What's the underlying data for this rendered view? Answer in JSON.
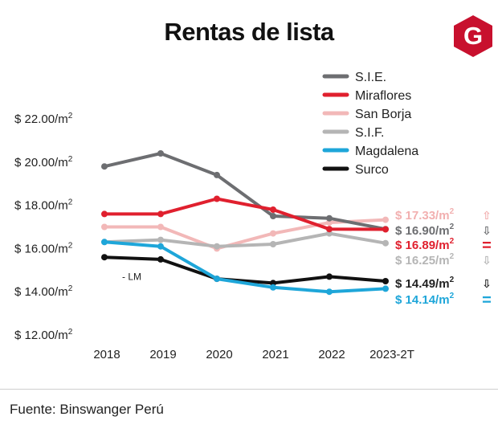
{
  "title": "Rentas de lista",
  "logo": {
    "icon": "gestion-logo-icon",
    "letter": "G",
    "color": "#c8102e"
  },
  "source": "Fuente: Binswanger Perú",
  "chart_data": {
    "type": "line",
    "title": "Rentas de lista",
    "xlabel": "",
    "ylabel": "",
    "categories": [
      "2018",
      "2019",
      "2020",
      "2021",
      "2022",
      "2023-2T"
    ],
    "y_ticks": [
      {
        "value": 12,
        "label": "$ 12.00/m",
        "sup": "2"
      },
      {
        "value": 14,
        "label": "$ 14.00/m",
        "sup": "2"
      },
      {
        "value": 16,
        "label": "$ 16.00/m",
        "sup": "2"
      },
      {
        "value": 18,
        "label": "$ 18.00/m",
        "sup": "2"
      },
      {
        "value": 20,
        "label": "$ 20.00/m",
        "sup": "2"
      },
      {
        "value": 22,
        "label": "$ 22.00/m",
        "sup": "2"
      }
    ],
    "ylim": [
      12,
      22
    ],
    "grid": false,
    "legend_position": "top-right",
    "series": [
      {
        "name": "S.I.E.",
        "color": "#6d6e71",
        "values": [
          19.8,
          20.4,
          19.4,
          17.5,
          17.4,
          16.9
        ],
        "end_label": "$ 16.90/m",
        "end_sup": "2",
        "label_color": "#6d6e71",
        "trend": "⇩",
        "trend_color": "#6d6e71"
      },
      {
        "name": "Miraflores",
        "color": "#e0202e",
        "values": [
          17.6,
          17.6,
          18.3,
          17.8,
          16.9,
          16.89
        ],
        "end_label": "$ 16.89/m",
        "end_sup": "2",
        "label_color": "#e0202e",
        "trend": "=",
        "trend_color": "#e0202e"
      },
      {
        "name": "San Borja",
        "color": "#f2b8b8",
        "values": [
          17.0,
          17.0,
          16.0,
          16.7,
          17.2,
          17.33
        ],
        "end_label": "$ 17.33/m",
        "end_sup": "2",
        "label_color": "#f2b0b0",
        "trend": "⇧",
        "trend_color": "#f2b0b0"
      },
      {
        "name": "S.I.F.",
        "color": "#b5b5b5",
        "values": [
          16.3,
          16.4,
          16.1,
          16.2,
          16.7,
          16.25
        ],
        "end_label": "$ 16.25/m",
        "end_sup": "2",
        "label_color": "#b5b5b5",
        "trend": "⇩",
        "trend_color": "#b5b5b5"
      },
      {
        "name": "Magdalena",
        "color": "#1ea6d9",
        "values": [
          16.3,
          16.1,
          14.6,
          14.2,
          14.0,
          14.14
        ],
        "end_label": "$ 14.14/m",
        "end_sup": "2",
        "label_color": "#1ea6d9",
        "trend": "=",
        "trend_color": "#1ea6d9"
      },
      {
        "name": "Surco",
        "color": "#111111",
        "values": [
          15.6,
          15.5,
          14.6,
          14.4,
          14.7,
          14.49
        ],
        "end_label": "$ 14.49/m",
        "end_sup": "2",
        "label_color": "#222222",
        "trend": "⇩",
        "trend_color": "#222222"
      }
    ],
    "annotations": [
      {
        "text": "- LM",
        "x": "2018",
        "y": 14.7
      }
    ]
  }
}
